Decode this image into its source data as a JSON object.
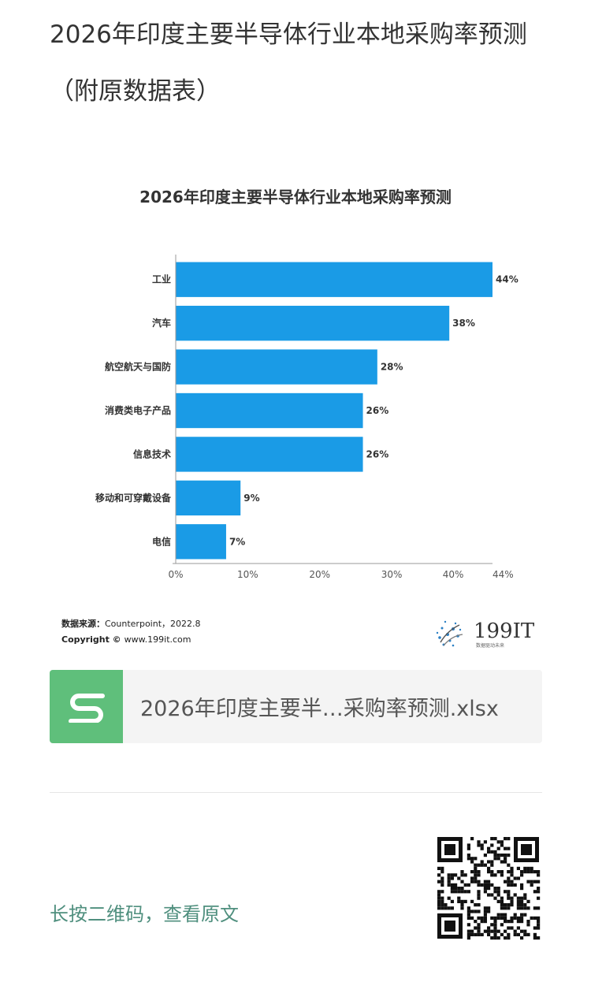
{
  "page": {
    "title": "2026年印度主要半导体行业本地采购率预测（附原数据表）"
  },
  "chart_data": {
    "type": "bar",
    "orientation": "horizontal",
    "title": "2026年印度主要半导体行业本地采购率预测",
    "categories": [
      "工业",
      "汽车",
      "航空航天与国防",
      "消费类电子产品",
      "信息技术",
      "移动和可穿戴设备",
      "电信"
    ],
    "values": [
      44,
      38,
      28,
      26,
      26,
      9,
      7
    ],
    "value_labels": [
      "44%",
      "38%",
      "28%",
      "26%",
      "26%",
      "9%",
      "7%"
    ],
    "xlim": [
      0,
      44
    ],
    "x_ticks": [
      0,
      10,
      20,
      30,
      40,
      44
    ],
    "x_tick_labels": [
      "0%",
      "10%",
      "20%",
      "30%",
      "40%",
      "44%"
    ],
    "bar_color": "#1a9be6",
    "grid": false
  },
  "source": {
    "label": "数据来源：",
    "text": "Counterpoint，2022.8",
    "copyright_label": "Copyright ©",
    "copyright_text": "www.199it.com"
  },
  "logo": {
    "text": "199IT",
    "tagline": "数据驱动未来"
  },
  "file": {
    "name": "2026年印度主要半…采购率预测.xlsx",
    "icon": "spreadsheet-s-icon",
    "icon_color": "#5fbf7b"
  },
  "footer": {
    "qr_caption": "长按二维码，查看原文",
    "qr_icon": "qr-code-icon"
  }
}
